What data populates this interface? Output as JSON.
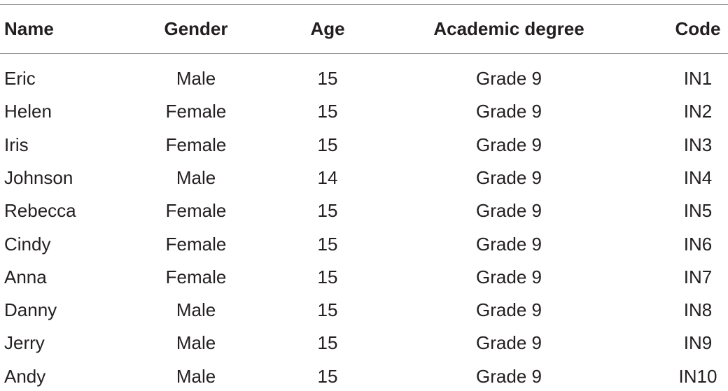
{
  "table": {
    "header": [
      "Name",
      "Gender",
      "Age",
      "Academic degree",
      "Code"
    ],
    "rows": [
      [
        "Eric",
        "Male",
        15,
        "Grade 9",
        "IN1"
      ],
      [
        "Helen",
        "Female",
        15,
        "Grade 9",
        "IN2"
      ],
      [
        "Iris",
        "Female",
        15,
        "Grade 9",
        "IN3"
      ],
      [
        "Johnson",
        "Male",
        14,
        "Grade 9",
        "IN4"
      ],
      [
        "Rebecca",
        "Female",
        15,
        "Grade 9",
        "IN5"
      ],
      [
        "Cindy",
        "Female",
        15,
        "Grade 9",
        "IN6"
      ],
      [
        "Anna",
        "Female",
        15,
        "Grade 9",
        "IN7"
      ],
      [
        "Danny",
        "Male",
        15,
        "Grade 9",
        "IN8"
      ],
      [
        "Jerry",
        "Male",
        15,
        "Grade 9",
        "IN9"
      ],
      [
        "Andy",
        "Male",
        15,
        "Grade 9",
        "IN10"
      ]
    ]
  }
}
